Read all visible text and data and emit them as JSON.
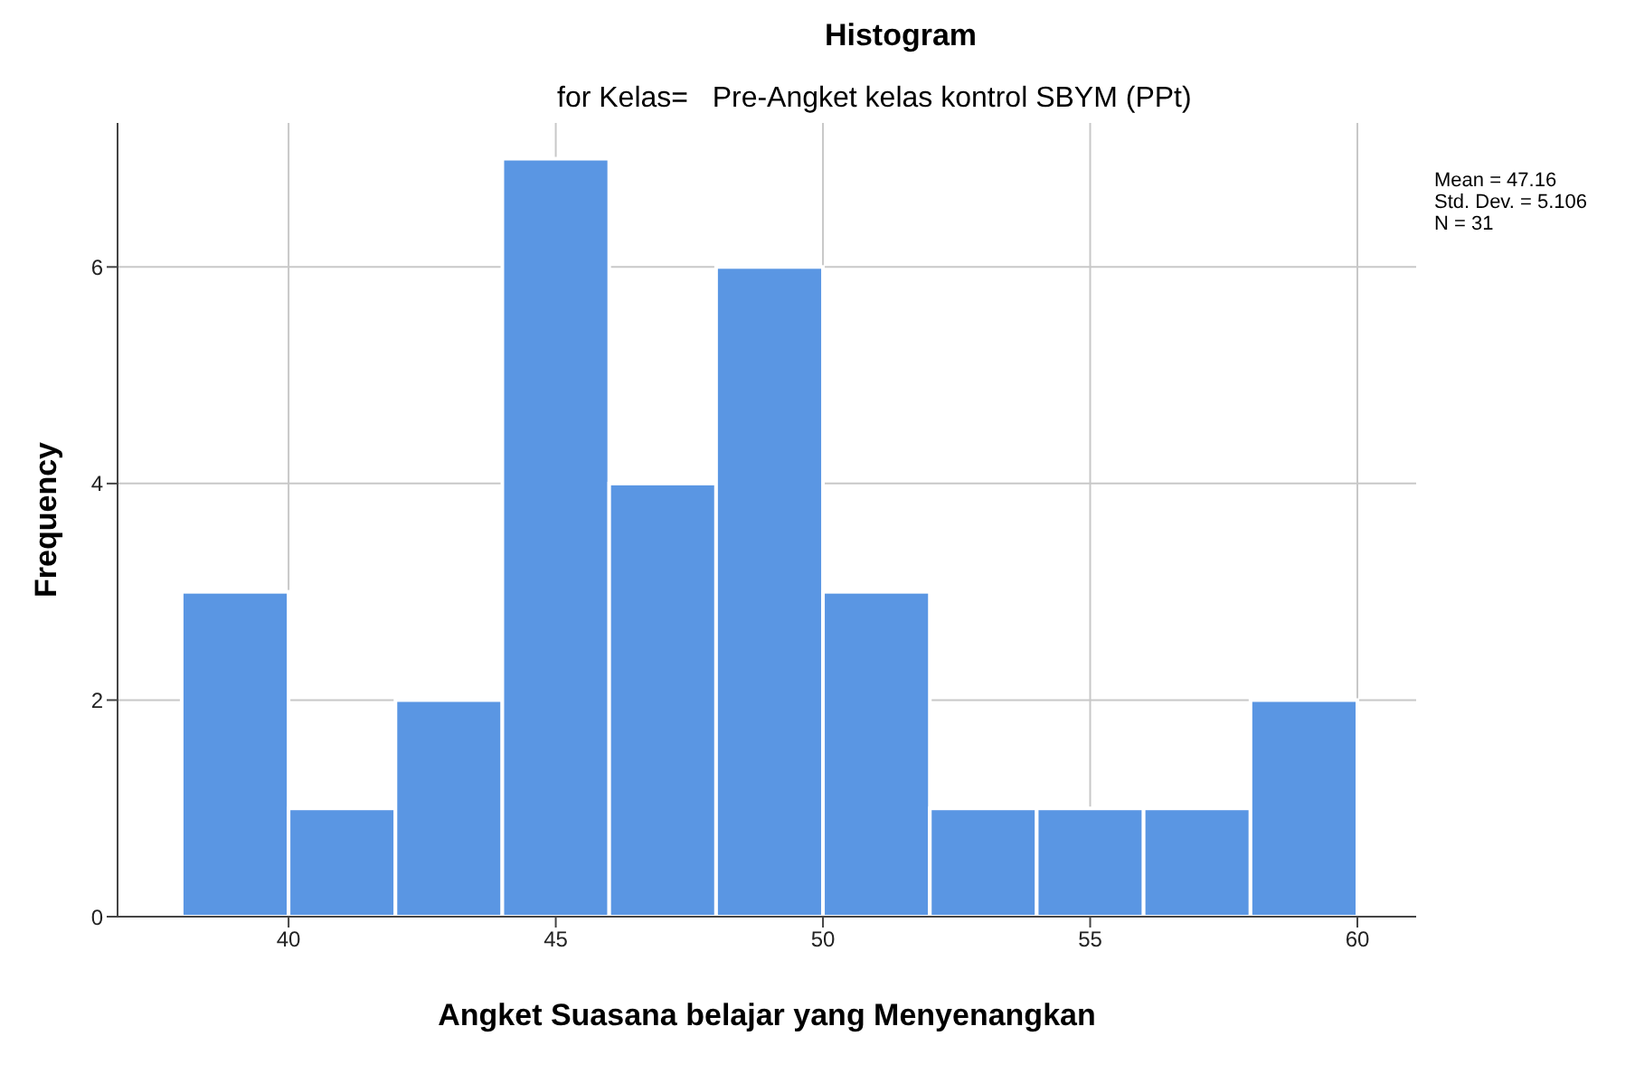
{
  "chart_data": {
    "type": "histogram",
    "title": "Histogram",
    "subtitle": "for Kelas=   Pre-Angket kelas kontrol SBYM (PPt)",
    "xlabel": "Angket Suasana belajar yang Menyenangkan",
    "ylabel": "Frequency",
    "bins": [
      38,
      40,
      42,
      44,
      46,
      48,
      50,
      52,
      54,
      56,
      58,
      60
    ],
    "values": [
      3,
      1,
      2,
      7,
      4,
      6,
      3,
      1,
      1,
      1,
      2
    ],
    "color": "#5a96e3",
    "xlim": [
      36.8,
      61.1
    ],
    "xticks": [
      40,
      45,
      50,
      55,
      60
    ],
    "ylim": [
      0,
      7.33
    ],
    "yticks": [
      0,
      2,
      4,
      6
    ],
    "grid": true,
    "annotations": [
      "Mean = 47.16",
      "Std. Dev. = 5.106",
      "N = 31"
    ]
  }
}
